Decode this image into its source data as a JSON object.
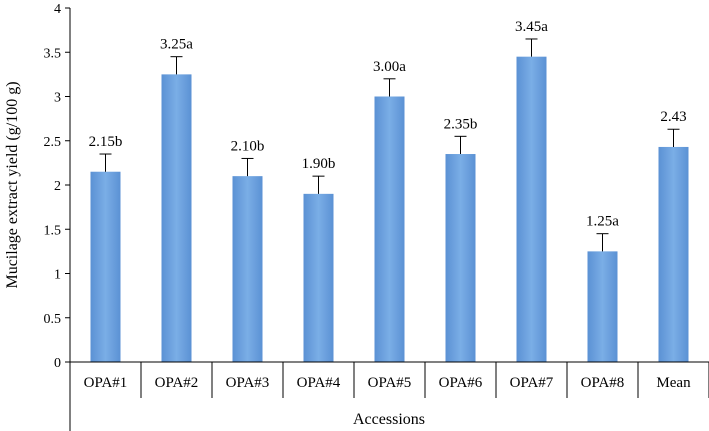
{
  "chart_data": {
    "type": "bar",
    "title": "",
    "xlabel": "Accessions",
    "ylabel": "Mucilage extract yield (g/100 g)",
    "ylim": [
      0,
      4
    ],
    "yticks": [
      0,
      0.5,
      1,
      1.5,
      2,
      2.5,
      3,
      3.5,
      4
    ],
    "ytick_labels": [
      "0",
      "0.5",
      "1",
      "1.5",
      "2",
      "2.5",
      "3",
      "3.5",
      "4"
    ],
    "grid": false,
    "legend": "none",
    "bar_color": "#6a9fdc",
    "categories": [
      "OPA#1",
      "OPA#2",
      "OPA#3",
      "OPA#4",
      "OPA#5",
      "OPA#6",
      "OPA#7",
      "OPA#8",
      "Mean"
    ],
    "values": [
      2.15,
      3.25,
      2.1,
      1.9,
      3.0,
      2.35,
      3.45,
      1.25,
      2.43
    ],
    "error_upper": [
      0.2,
      0.2,
      0.2,
      0.2,
      0.2,
      0.2,
      0.2,
      0.2,
      0.2
    ],
    "data_labels": [
      "2.15b",
      "3.25a",
      "2.10b",
      "1.90b",
      "3.00a",
      "2.35b",
      "3.45a",
      "1.25a",
      "2.43"
    ]
  }
}
